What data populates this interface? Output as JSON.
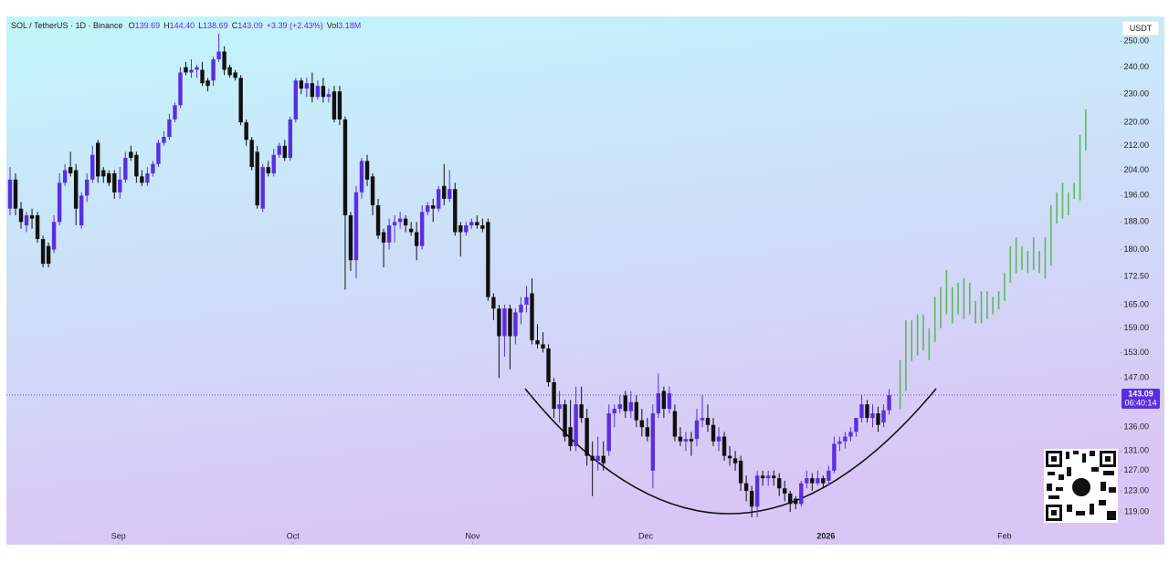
{
  "chart_data": {
    "type": "candlestick",
    "legend": {
      "symbol": "SOL / TetherUS · 1D · Binance",
      "items": [
        {
          "key": "O",
          "value": "139.69"
        },
        {
          "key": "H",
          "value": "144.40"
        },
        {
          "key": "L",
          "value": "138.69"
        },
        {
          "key": "C",
          "value": "143.09"
        }
      ],
      "change": "+3.39 (+2.43%)",
      "volume_key": "Vol",
      "volume": "3.18M"
    },
    "currency": "USDT",
    "up_color": "#5a2ee0",
    "down_color": "#111111",
    "candles": [
      [
        192,
        205,
        190,
        201
      ],
      [
        201,
        203,
        190,
        192
      ],
      [
        192,
        194,
        186,
        188
      ],
      [
        187,
        191,
        185,
        190
      ],
      [
        190,
        192,
        186,
        189
      ],
      [
        190,
        191,
        182,
        183
      ],
      [
        183,
        184,
        175,
        176
      ],
      [
        181,
        182,
        175,
        176
      ],
      [
        180,
        190,
        179,
        188
      ],
      [
        188,
        203,
        187,
        200
      ],
      [
        200,
        206,
        199,
        204
      ],
      [
        205,
        210,
        202,
        203
      ],
      [
        204,
        206,
        187,
        192
      ],
      [
        187,
        197,
        186,
        196
      ],
      [
        196,
        203,
        194,
        201
      ],
      [
        201,
        212,
        200,
        209
      ],
      [
        213,
        214,
        200,
        202
      ],
      [
        204,
        205,
        200,
        202
      ],
      [
        203,
        204,
        199,
        200
      ],
      [
        203,
        204,
        195,
        197
      ],
      [
        197,
        205,
        195,
        201
      ],
      [
        201,
        210,
        200,
        208
      ],
      [
        210,
        212,
        207,
        208
      ],
      [
        209,
        210,
        200,
        202
      ],
      [
        202,
        204,
        199,
        200
      ],
      [
        200,
        205,
        199,
        203
      ],
      [
        203,
        207,
        202,
        206
      ],
      [
        206,
        214,
        205,
        213
      ],
      [
        213,
        217,
        212,
        215
      ],
      [
        215,
        223,
        214,
        221
      ],
      [
        221,
        227,
        220,
        226
      ],
      [
        226,
        240,
        225,
        238
      ],
      [
        240,
        242,
        237,
        238
      ],
      [
        238,
        243,
        236,
        239
      ],
      [
        239,
        241,
        236,
        240
      ],
      [
        239,
        242,
        233,
        234
      ],
      [
        235,
        236,
        231,
        233
      ],
      [
        235,
        244,
        233,
        243
      ],
      [
        243,
        253,
        242,
        246
      ],
      [
        246,
        248,
        237,
        239
      ],
      [
        240,
        241,
        236,
        237
      ],
      [
        238,
        239,
        235,
        236
      ],
      [
        236,
        237,
        219,
        220
      ],
      [
        220,
        221,
        212,
        214
      ],
      [
        214,
        215,
        204,
        205
      ],
      [
        210,
        212,
        192,
        193
      ],
      [
        192,
        206,
        191,
        205
      ],
      [
        205,
        207,
        202,
        203
      ],
      [
        203,
        211,
        202,
        209
      ],
      [
        209,
        213,
        208,
        212
      ],
      [
        212,
        214,
        207,
        208
      ],
      [
        208,
        222,
        207,
        221
      ],
      [
        221,
        236,
        220,
        235
      ],
      [
        235,
        236,
        230,
        232
      ],
      [
        232,
        236,
        229,
        234
      ],
      [
        234,
        238,
        227,
        229
      ],
      [
        229,
        235,
        228,
        233
      ],
      [
        233,
        236,
        227,
        229
      ],
      [
        229,
        232,
        227,
        230
      ],
      [
        231,
        233,
        220,
        221
      ],
      [
        231,
        233,
        219,
        221
      ],
      [
        221,
        222,
        169,
        190
      ],
      [
        190,
        191,
        174,
        177
      ],
      [
        177,
        199,
        172,
        197
      ],
      [
        197,
        208,
        195,
        207
      ],
      [
        207,
        209,
        199,
        201
      ],
      [
        202,
        203,
        190,
        193
      ],
      [
        193,
        195,
        183,
        184
      ],
      [
        185,
        186,
        175,
        182
      ],
      [
        182,
        189,
        180,
        187
      ],
      [
        187,
        190,
        182,
        188
      ],
      [
        188,
        191,
        186,
        189
      ],
      [
        189,
        190,
        185,
        187
      ],
      [
        186,
        188,
        184,
        185
      ],
      [
        185,
        188,
        177,
        181
      ],
      [
        181,
        193,
        180,
        191
      ],
      [
        191,
        194,
        190,
        193
      ],
      [
        193,
        195,
        188,
        192
      ],
      [
        192,
        199,
        191,
        198
      ],
      [
        199,
        206,
        193,
        195
      ],
      [
        195,
        204,
        194,
        198
      ],
      [
        198,
        200,
        184,
        185
      ],
      [
        187,
        188,
        178,
        185
      ],
      [
        185,
        188,
        184,
        187
      ],
      [
        187,
        189,
        186,
        188
      ],
      [
        188,
        190,
        186,
        187
      ],
      [
        187,
        189,
        185,
        186
      ],
      [
        188,
        189,
        166,
        167
      ],
      [
        167,
        168,
        161,
        164
      ],
      [
        164,
        165,
        147,
        157
      ],
      [
        157,
        165,
        152,
        164
      ],
      [
        164,
        165,
        149,
        157
      ],
      [
        157,
        164,
        155,
        163
      ],
      [
        163,
        167,
        160,
        165
      ],
      [
        165,
        170,
        163,
        167
      ],
      [
        168,
        172,
        155,
        156
      ],
      [
        156,
        160,
        154,
        155
      ],
      [
        155,
        158,
        153,
        154
      ],
      [
        154,
        155,
        145,
        146
      ],
      [
        146,
        147,
        138,
        140
      ],
      [
        140,
        144,
        137,
        141
      ],
      [
        141,
        142,
        133,
        134
      ],
      [
        136,
        142,
        131,
        132
      ],
      [
        132,
        145,
        131,
        141
      ],
      [
        141,
        145,
        137,
        138
      ],
      [
        138,
        140,
        128,
        130
      ],
      [
        130,
        133,
        122,
        129
      ],
      [
        129,
        134,
        127,
        130
      ],
      [
        130,
        133,
        127,
        128.5
      ],
      [
        131,
        141,
        130,
        139
      ],
      [
        139,
        141,
        136,
        140
      ],
      [
        140,
        143,
        139,
        141
      ],
      [
        143,
        144,
        138,
        139.5
      ],
      [
        139.5,
        144,
        138,
        141.5
      ],
      [
        141.5,
        143,
        136,
        137.5
      ],
      [
        137.5,
        140,
        134,
        136
      ],
      [
        136,
        138,
        133,
        134
      ],
      [
        127,
        141,
        123.5,
        139
      ],
      [
        139,
        148,
        138,
        143.5
      ],
      [
        144,
        145,
        138,
        140
      ],
      [
        140,
        145,
        139,
        143.5
      ],
      [
        139.5,
        141,
        133,
        134
      ],
      [
        134,
        136,
        132,
        133
      ],
      [
        133,
        135,
        131,
        133.5
      ],
      [
        133.5,
        135,
        130,
        133
      ],
      [
        133.5,
        140,
        132,
        137.5
      ],
      [
        137.5,
        143,
        136,
        138
      ],
      [
        138,
        141,
        135,
        136.5
      ],
      [
        136.5,
        138,
        132,
        133
      ],
      [
        133,
        136,
        131,
        134
      ],
      [
        134,
        135,
        129,
        130
      ],
      [
        130,
        132,
        128,
        129.5
      ],
      [
        129.5,
        131,
        127,
        128.5
      ],
      [
        129,
        130,
        123,
        124.5
      ],
      [
        124.5,
        126,
        121,
        123
      ],
      [
        123,
        124,
        118,
        120
      ],
      [
        120,
        127,
        118,
        126
      ],
      [
        126,
        127,
        124,
        125.5
      ],
      [
        125.5,
        127,
        124,
        126
      ],
      [
        126,
        127,
        124,
        125.5
      ],
      [
        125.5,
        126.5,
        122,
        123.5
      ],
      [
        123.5,
        125,
        121,
        122.5
      ],
      [
        122.5,
        123,
        119,
        120.5
      ],
      [
        121.5,
        122,
        119.5,
        120.5
      ],
      [
        120.5,
        125,
        120,
        124.5
      ],
      [
        124.5,
        127,
        123.5,
        125.5
      ],
      [
        125.5,
        126.5,
        123,
        124.5
      ],
      [
        124.5,
        127,
        124,
        125.5
      ],
      [
        125.5,
        126,
        123.5,
        124.5
      ],
      [
        125,
        128,
        124,
        127
      ],
      [
        127,
        134,
        126.5,
        132.5
      ],
      [
        132.5,
        134,
        131,
        133
      ],
      [
        133,
        135,
        131.5,
        134
      ],
      [
        134,
        136,
        133,
        135
      ],
      [
        135,
        138,
        134,
        138
      ],
      [
        138,
        143,
        137,
        141
      ],
      [
        141,
        142,
        137,
        138
      ],
      [
        138,
        141,
        136,
        139
      ],
      [
        139,
        140.5,
        135,
        136.5
      ],
      [
        137,
        141,
        136,
        139.7
      ],
      [
        139.69,
        144.4,
        138.69,
        143.09
      ]
    ],
    "projection": {
      "color": "#5cb85c",
      "ranges": [
        [
          151.2,
          139.9
        ],
        [
          161,
          144
        ],
        [
          161,
          151
        ],
        [
          162.5,
          152.3
        ],
        [
          162.5,
          153.5
        ],
        [
          159,
          151.2
        ],
        [
          167,
          155.6
        ],
        [
          169.6,
          159
        ],
        [
          174.3,
          162.5
        ],
        [
          169.6,
          160.2
        ],
        [
          170.8,
          162.5
        ],
        [
          172,
          161.3
        ],
        [
          170.8,
          162.5
        ],
        [
          166,
          160.2
        ],
        [
          168.5,
          160.2
        ],
        [
          168.5,
          161.3
        ],
        [
          167,
          162.5
        ],
        [
          168.5,
          163.8
        ],
        [
          173.4,
          166
        ],
        [
          181,
          170.8
        ],
        [
          183.5,
          173.4
        ],
        [
          181,
          174.3
        ],
        [
          179.6,
          173.4
        ],
        [
          183.5,
          174.3
        ],
        [
          179.6,
          173.4
        ],
        [
          183.5,
          172
        ],
        [
          193,
          175.5
        ],
        [
          197,
          187.5
        ],
        [
          200,
          189
        ],
        [
          197,
          190
        ],
        [
          200,
          195
        ],
        [
          215.7,
          194.5
        ],
        [
          224.5,
          210.5
        ]
      ]
    },
    "last_price": {
      "value": 143.09,
      "label": "143.09"
    },
    "countdown": "06:40:14",
    "log_scale": true,
    "ylim": [
      113,
      260
    ],
    "yticks": [
      {
        "value": 250,
        "label": "250.00"
      },
      {
        "value": 240,
        "label": "240.00"
      },
      {
        "value": 230,
        "label": "230.00"
      },
      {
        "value": 220,
        "label": "220.00"
      },
      {
        "value": 212,
        "label": "212.00"
      },
      {
        "value": 204,
        "label": "204.00"
      },
      {
        "value": 196,
        "label": "196.00"
      },
      {
        "value": 188,
        "label": "188.00"
      },
      {
        "value": 180,
        "label": "180.00"
      },
      {
        "value": 172.5,
        "label": "172.50"
      },
      {
        "value": 165,
        "label": "165.00"
      },
      {
        "value": 159,
        "label": "159.00"
      },
      {
        "value": 153,
        "label": "153.00"
      },
      {
        "value": 147,
        "label": "147.00"
      },
      {
        "value": 136,
        "label": "136.00"
      },
      {
        "value": 131,
        "label": "131.00"
      },
      {
        "value": 127,
        "label": "127.00"
      },
      {
        "value": 123,
        "label": "123.00"
      },
      {
        "value": 119,
        "label": "119.00"
      }
    ],
    "xlim": [
      -0.33,
      201.8
    ],
    "xticks": [
      {
        "value": 19.75,
        "label": "Sep"
      },
      {
        "value": 51.5,
        "label": "Oct"
      },
      {
        "value": 84.2,
        "label": "Nov"
      },
      {
        "value": 115.7,
        "label": "Dec"
      },
      {
        "value": 148.5,
        "label": "2026"
      },
      {
        "value": 181,
        "label": "Feb"
      }
    ]
  }
}
